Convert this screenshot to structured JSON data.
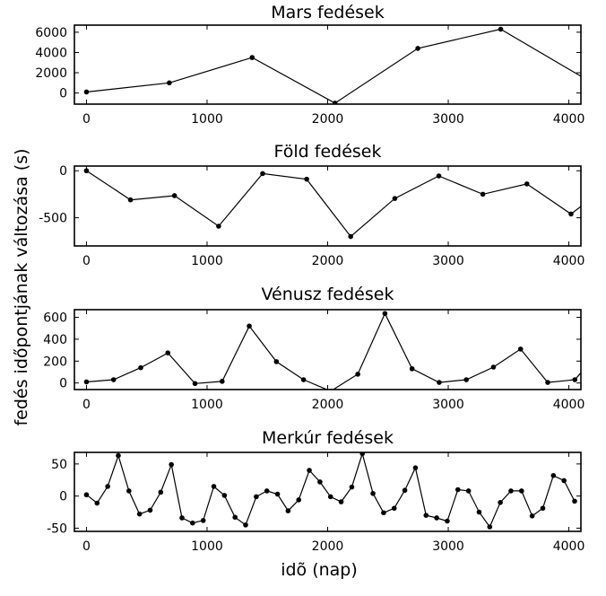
{
  "figure": {
    "ylabel": "fedés időpontjának változása (s)",
    "xlabel": "idõ (nap)"
  },
  "chart_data": [
    {
      "type": "line",
      "title": "Mars fedések",
      "xlim": [
        -100,
        4100
      ],
      "ylim": [
        -1100,
        6700
      ],
      "xticks": [
        0,
        1000,
        2000,
        3000,
        4000
      ],
      "yticks": [
        0,
        2000,
        4000,
        6000
      ],
      "x": [
        0,
        687,
        1374,
        2061,
        2748,
        3435,
        4122
      ],
      "y": [
        100,
        1000,
        3500,
        -1000,
        4400,
        6300,
        1500
      ]
    },
    {
      "type": "line",
      "title": "Föld fedések",
      "xlim": [
        -100,
        4100
      ],
      "ylim": [
        -800,
        50
      ],
      "xticks": [
        0,
        1000,
        2000,
        3000,
        4000
      ],
      "yticks": [
        0,
        -500
      ],
      "x": [
        0,
        365,
        730,
        1096,
        1461,
        1826,
        2191,
        2557,
        2922,
        3287,
        3652,
        4018,
        4200
      ],
      "y": [
        0,
        -310,
        -265,
        -590,
        -30,
        -90,
        -700,
        -295,
        -55,
        -250,
        -140,
        -460,
        -280
      ]
    },
    {
      "type": "line",
      "title": "Vénusz fedések",
      "xlim": [
        -100,
        4100
      ],
      "ylim": [
        -60,
        670
      ],
      "xticks": [
        0,
        1000,
        2000,
        3000,
        4000
      ],
      "yticks": [
        0,
        200,
        400,
        600
      ],
      "x": [
        0,
        225,
        450,
        675,
        900,
        1125,
        1350,
        1575,
        1800,
        2025,
        2250,
        2475,
        2700,
        2925,
        3150,
        3375,
        3600,
        3825,
        4050,
        4200
      ],
      "y": [
        10,
        30,
        140,
        275,
        -5,
        15,
        520,
        195,
        30,
        -75,
        80,
        635,
        130,
        5,
        30,
        145,
        310,
        5,
        30,
        220
      ]
    },
    {
      "type": "line",
      "title": "Merkúr fedések",
      "xlim": [
        -100,
        4100
      ],
      "ylim": [
        -55,
        68
      ],
      "xticks": [
        0,
        1000,
        2000,
        3000,
        4000
      ],
      "yticks": [
        50,
        0,
        -50
      ],
      "x": [
        0,
        88,
        176,
        264,
        352,
        440,
        528,
        616,
        704,
        792,
        880,
        968,
        1056,
        1144,
        1232,
        1320,
        1408,
        1496,
        1584,
        1672,
        1760,
        1848,
        1936,
        2024,
        2112,
        2200,
        2288,
        2376,
        2464,
        2552,
        2640,
        2728,
        2816,
        2904,
        2992,
        3080,
        3168,
        3256,
        3344,
        3432,
        3520,
        3608,
        3696,
        3784,
        3872,
        3960,
        4048
      ],
      "y": [
        2,
        -11,
        15,
        63,
        8,
        -28,
        -22,
        6,
        49,
        -34,
        -42,
        -38,
        15,
        1,
        -33,
        -45,
        -1,
        8,
        3,
        -23,
        -6,
        40,
        22,
        -1,
        -9,
        14,
        66,
        4,
        -26,
        -19,
        9,
        44,
        -30,
        -34,
        -39,
        10,
        8,
        -25,
        -48,
        -10,
        8,
        8,
        -31,
        -19,
        32,
        24,
        -8
      ]
    }
  ]
}
